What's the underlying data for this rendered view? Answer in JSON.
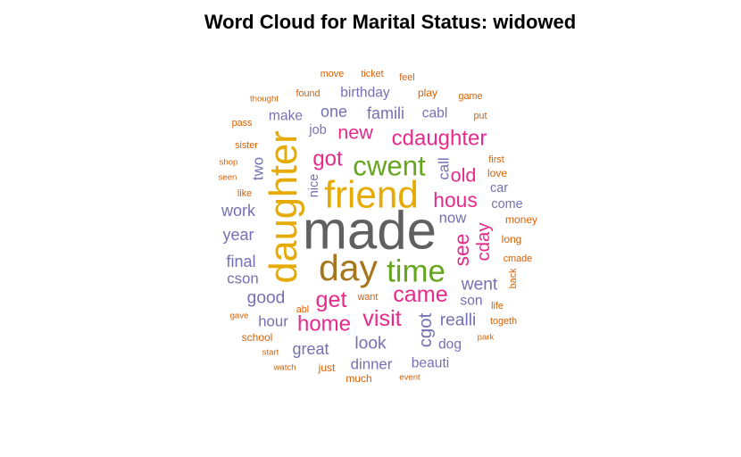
{
  "chart_data": {
    "type": "wordcloud",
    "title": "Word Cloud for Marital Status: widowed",
    "palette": {
      "gray": "#606060",
      "olive": "#A6761D",
      "yellow": "#E6AB02",
      "green": "#66A61E",
      "pink": "#E7298A",
      "purple": "#7570B3",
      "orange": "#D95F02"
    },
    "words": [
      {
        "text": "made",
        "weight": 100,
        "color": "gray"
      },
      {
        "text": "friend",
        "weight": 68,
        "color": "yellow"
      },
      {
        "text": "daughter",
        "weight": 70,
        "color": "yellow"
      },
      {
        "text": "day",
        "weight": 66,
        "color": "olive"
      },
      {
        "text": "time",
        "weight": 58,
        "color": "green"
      },
      {
        "text": "cwent",
        "weight": 52,
        "color": "green"
      },
      {
        "text": "came",
        "weight": 42,
        "color": "pink"
      },
      {
        "text": "get",
        "weight": 42,
        "color": "pink"
      },
      {
        "text": "visit",
        "weight": 42,
        "color": "pink"
      },
      {
        "text": "cdaughter",
        "weight": 40,
        "color": "pink"
      },
      {
        "text": "got",
        "weight": 40,
        "color": "pink"
      },
      {
        "text": "home",
        "weight": 40,
        "color": "pink"
      },
      {
        "text": "hous",
        "weight": 38,
        "color": "pink"
      },
      {
        "text": "see",
        "weight": 38,
        "color": "pink"
      },
      {
        "text": "new",
        "weight": 36,
        "color": "pink"
      },
      {
        "text": "old",
        "weight": 36,
        "color": "pink"
      },
      {
        "text": "cday",
        "weight": 34,
        "color": "pink"
      },
      {
        "text": "cgot",
        "weight": 34,
        "color": "purple"
      },
      {
        "text": "realli",
        "weight": 32,
        "color": "purple"
      },
      {
        "text": "good",
        "weight": 32,
        "color": "purple"
      },
      {
        "text": "went",
        "weight": 32,
        "color": "purple"
      },
      {
        "text": "look",
        "weight": 32,
        "color": "purple"
      },
      {
        "text": "work",
        "weight": 30,
        "color": "purple"
      },
      {
        "text": "year",
        "weight": 30,
        "color": "purple"
      },
      {
        "text": "final",
        "weight": 30,
        "color": "purple"
      },
      {
        "text": "great",
        "weight": 30,
        "color": "purple"
      },
      {
        "text": "famili",
        "weight": 30,
        "color": "purple"
      },
      {
        "text": "one",
        "weight": 30,
        "color": "purple"
      },
      {
        "text": "two",
        "weight": 28,
        "color": "purple"
      },
      {
        "text": "cson",
        "weight": 28,
        "color": "purple"
      },
      {
        "text": "hour",
        "weight": 28,
        "color": "purple"
      },
      {
        "text": "dinner",
        "weight": 28,
        "color": "purple"
      },
      {
        "text": "call",
        "weight": 28,
        "color": "purple"
      },
      {
        "text": "now",
        "weight": 28,
        "color": "purple"
      },
      {
        "text": "son",
        "weight": 26,
        "color": "purple"
      },
      {
        "text": "dog",
        "weight": 26,
        "color": "purple"
      },
      {
        "text": "beauti",
        "weight": 26,
        "color": "purple"
      },
      {
        "text": "make",
        "weight": 26,
        "color": "purple"
      },
      {
        "text": "birthday",
        "weight": 26,
        "color": "purple"
      },
      {
        "text": "cabl",
        "weight": 26,
        "color": "purple"
      },
      {
        "text": "come",
        "weight": 24,
        "color": "purple"
      },
      {
        "text": "car",
        "weight": 24,
        "color": "purple"
      },
      {
        "text": "job",
        "weight": 24,
        "color": "purple"
      },
      {
        "text": "nice",
        "weight": 24,
        "color": "purple"
      },
      {
        "text": "school",
        "weight": 20,
        "color": "orange"
      },
      {
        "text": "money",
        "weight": 20,
        "color": "orange"
      },
      {
        "text": "long",
        "weight": 20,
        "color": "orange"
      },
      {
        "text": "love",
        "weight": 20,
        "color": "orange"
      },
      {
        "text": "play",
        "weight": 20,
        "color": "orange"
      },
      {
        "text": "just",
        "weight": 20,
        "color": "orange"
      },
      {
        "text": "much",
        "weight": 20,
        "color": "orange"
      },
      {
        "text": "life",
        "weight": 18,
        "color": "orange"
      },
      {
        "text": "first",
        "weight": 18,
        "color": "orange"
      },
      {
        "text": "put",
        "weight": 18,
        "color": "orange"
      },
      {
        "text": "game",
        "weight": 18,
        "color": "orange"
      },
      {
        "text": "ticket",
        "weight": 18,
        "color": "orange"
      },
      {
        "text": "move",
        "weight": 18,
        "color": "orange"
      },
      {
        "text": "feel",
        "weight": 18,
        "color": "orange"
      },
      {
        "text": "found",
        "weight": 18,
        "color": "orange"
      },
      {
        "text": "thought",
        "weight": 16,
        "color": "orange"
      },
      {
        "text": "pass",
        "weight": 18,
        "color": "orange"
      },
      {
        "text": "sister",
        "weight": 18,
        "color": "orange"
      },
      {
        "text": "shop",
        "weight": 16,
        "color": "orange"
      },
      {
        "text": "seen",
        "weight": 16,
        "color": "orange"
      },
      {
        "text": "like",
        "weight": 18,
        "color": "orange"
      },
      {
        "text": "cmade",
        "weight": 18,
        "color": "orange"
      },
      {
        "text": "back",
        "weight": 18,
        "color": "orange"
      },
      {
        "text": "togeth",
        "weight": 18,
        "color": "orange"
      },
      {
        "text": "park",
        "weight": 16,
        "color": "orange"
      },
      {
        "text": "want",
        "weight": 18,
        "color": "orange"
      },
      {
        "text": "abl",
        "weight": 18,
        "color": "orange"
      },
      {
        "text": "gave",
        "weight": 16,
        "color": "orange"
      },
      {
        "text": "start",
        "weight": 16,
        "color": "orange"
      },
      {
        "text": "watch",
        "weight": 16,
        "color": "orange"
      },
      {
        "text": "event",
        "weight": 16,
        "color": "orange"
      }
    ]
  }
}
